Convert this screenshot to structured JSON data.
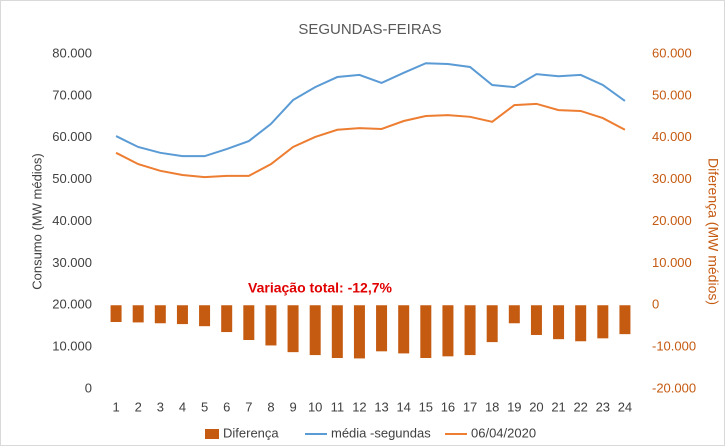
{
  "chart_data": {
    "type": "combo",
    "title": "SEGUNDAS-FEIRAS",
    "ylabel": "Consumo (MW médios)",
    "y2label": "Diferença (MW médios)",
    "annotation": "Variação total: -12,7%",
    "categories": [
      "1",
      "2",
      "3",
      "4",
      "5",
      "6",
      "7",
      "8",
      "9",
      "10",
      "11",
      "12",
      "13",
      "14",
      "15",
      "16",
      "17",
      "18",
      "19",
      "20",
      "21",
      "22",
      "23",
      "24"
    ],
    "ylim": [
      0,
      80000
    ],
    "yticks": [
      0,
      {
        "value": 10000,
        "label": "10.000"
      },
      {
        "value": 20000,
        "label": "20.000"
      },
      {
        "value": 30000,
        "label": "30.000"
      },
      {
        "value": 40000,
        "label": "40.000"
      },
      {
        "value": 50000,
        "label": "50.000"
      },
      {
        "value": 60000,
        "label": "60.000"
      },
      {
        "value": 70000,
        "label": "70.000"
      },
      {
        "value": 80000,
        "label": "80.000"
      }
    ],
    "y2lim": [
      -20000,
      60000
    ],
    "y2ticks": [
      {
        "value": -20000,
        "label": "-20.000"
      },
      {
        "value": -10000,
        "label": "-10.000"
      },
      0,
      {
        "value": 10000,
        "label": "10.000"
      },
      {
        "value": 20000,
        "label": "20.000"
      },
      {
        "value": 30000,
        "label": "30.000"
      },
      {
        "value": 40000,
        "label": "40.000"
      },
      {
        "value": 50000,
        "label": "50.000"
      },
      {
        "value": 60000,
        "label": "60.000"
      }
    ],
    "grid": false,
    "series": [
      {
        "name": "Diferença",
        "type": "bar",
        "axis": "y2",
        "color": "#c55a11",
        "values": [
          -4000,
          -4100,
          -4300,
          -4500,
          -5000,
          -6400,
          -8300,
          -9600,
          -11200,
          -11900,
          -12600,
          -12700,
          -11000,
          -11500,
          -12600,
          -12200,
          -11900,
          -8800,
          -4300,
          -7100,
          -8100,
          -8600,
          -7900,
          -6900
        ]
      },
      {
        "name": "média -segundas",
        "type": "line",
        "color": "#5b9bd5",
        "values": [
          60400,
          57800,
          56400,
          55600,
          55600,
          57300,
          59200,
          63300,
          69000,
          72100,
          74500,
          75000,
          73100,
          75500,
          77800,
          77600,
          76900,
          72600,
          72100,
          75200,
          74700,
          75000,
          72600,
          68800
        ]
      },
      {
        "name": "06/04/2020",
        "type": "line",
        "color": "#ed7d31",
        "values": [
          56400,
          53700,
          52100,
          51100,
          50600,
          50900,
          50900,
          53700,
          57800,
          60200,
          61900,
          62300,
          62100,
          64000,
          65200,
          65400,
          65000,
          63800,
          67800,
          68100,
          66600,
          66400,
          64700,
          61900
        ]
      }
    ]
  }
}
